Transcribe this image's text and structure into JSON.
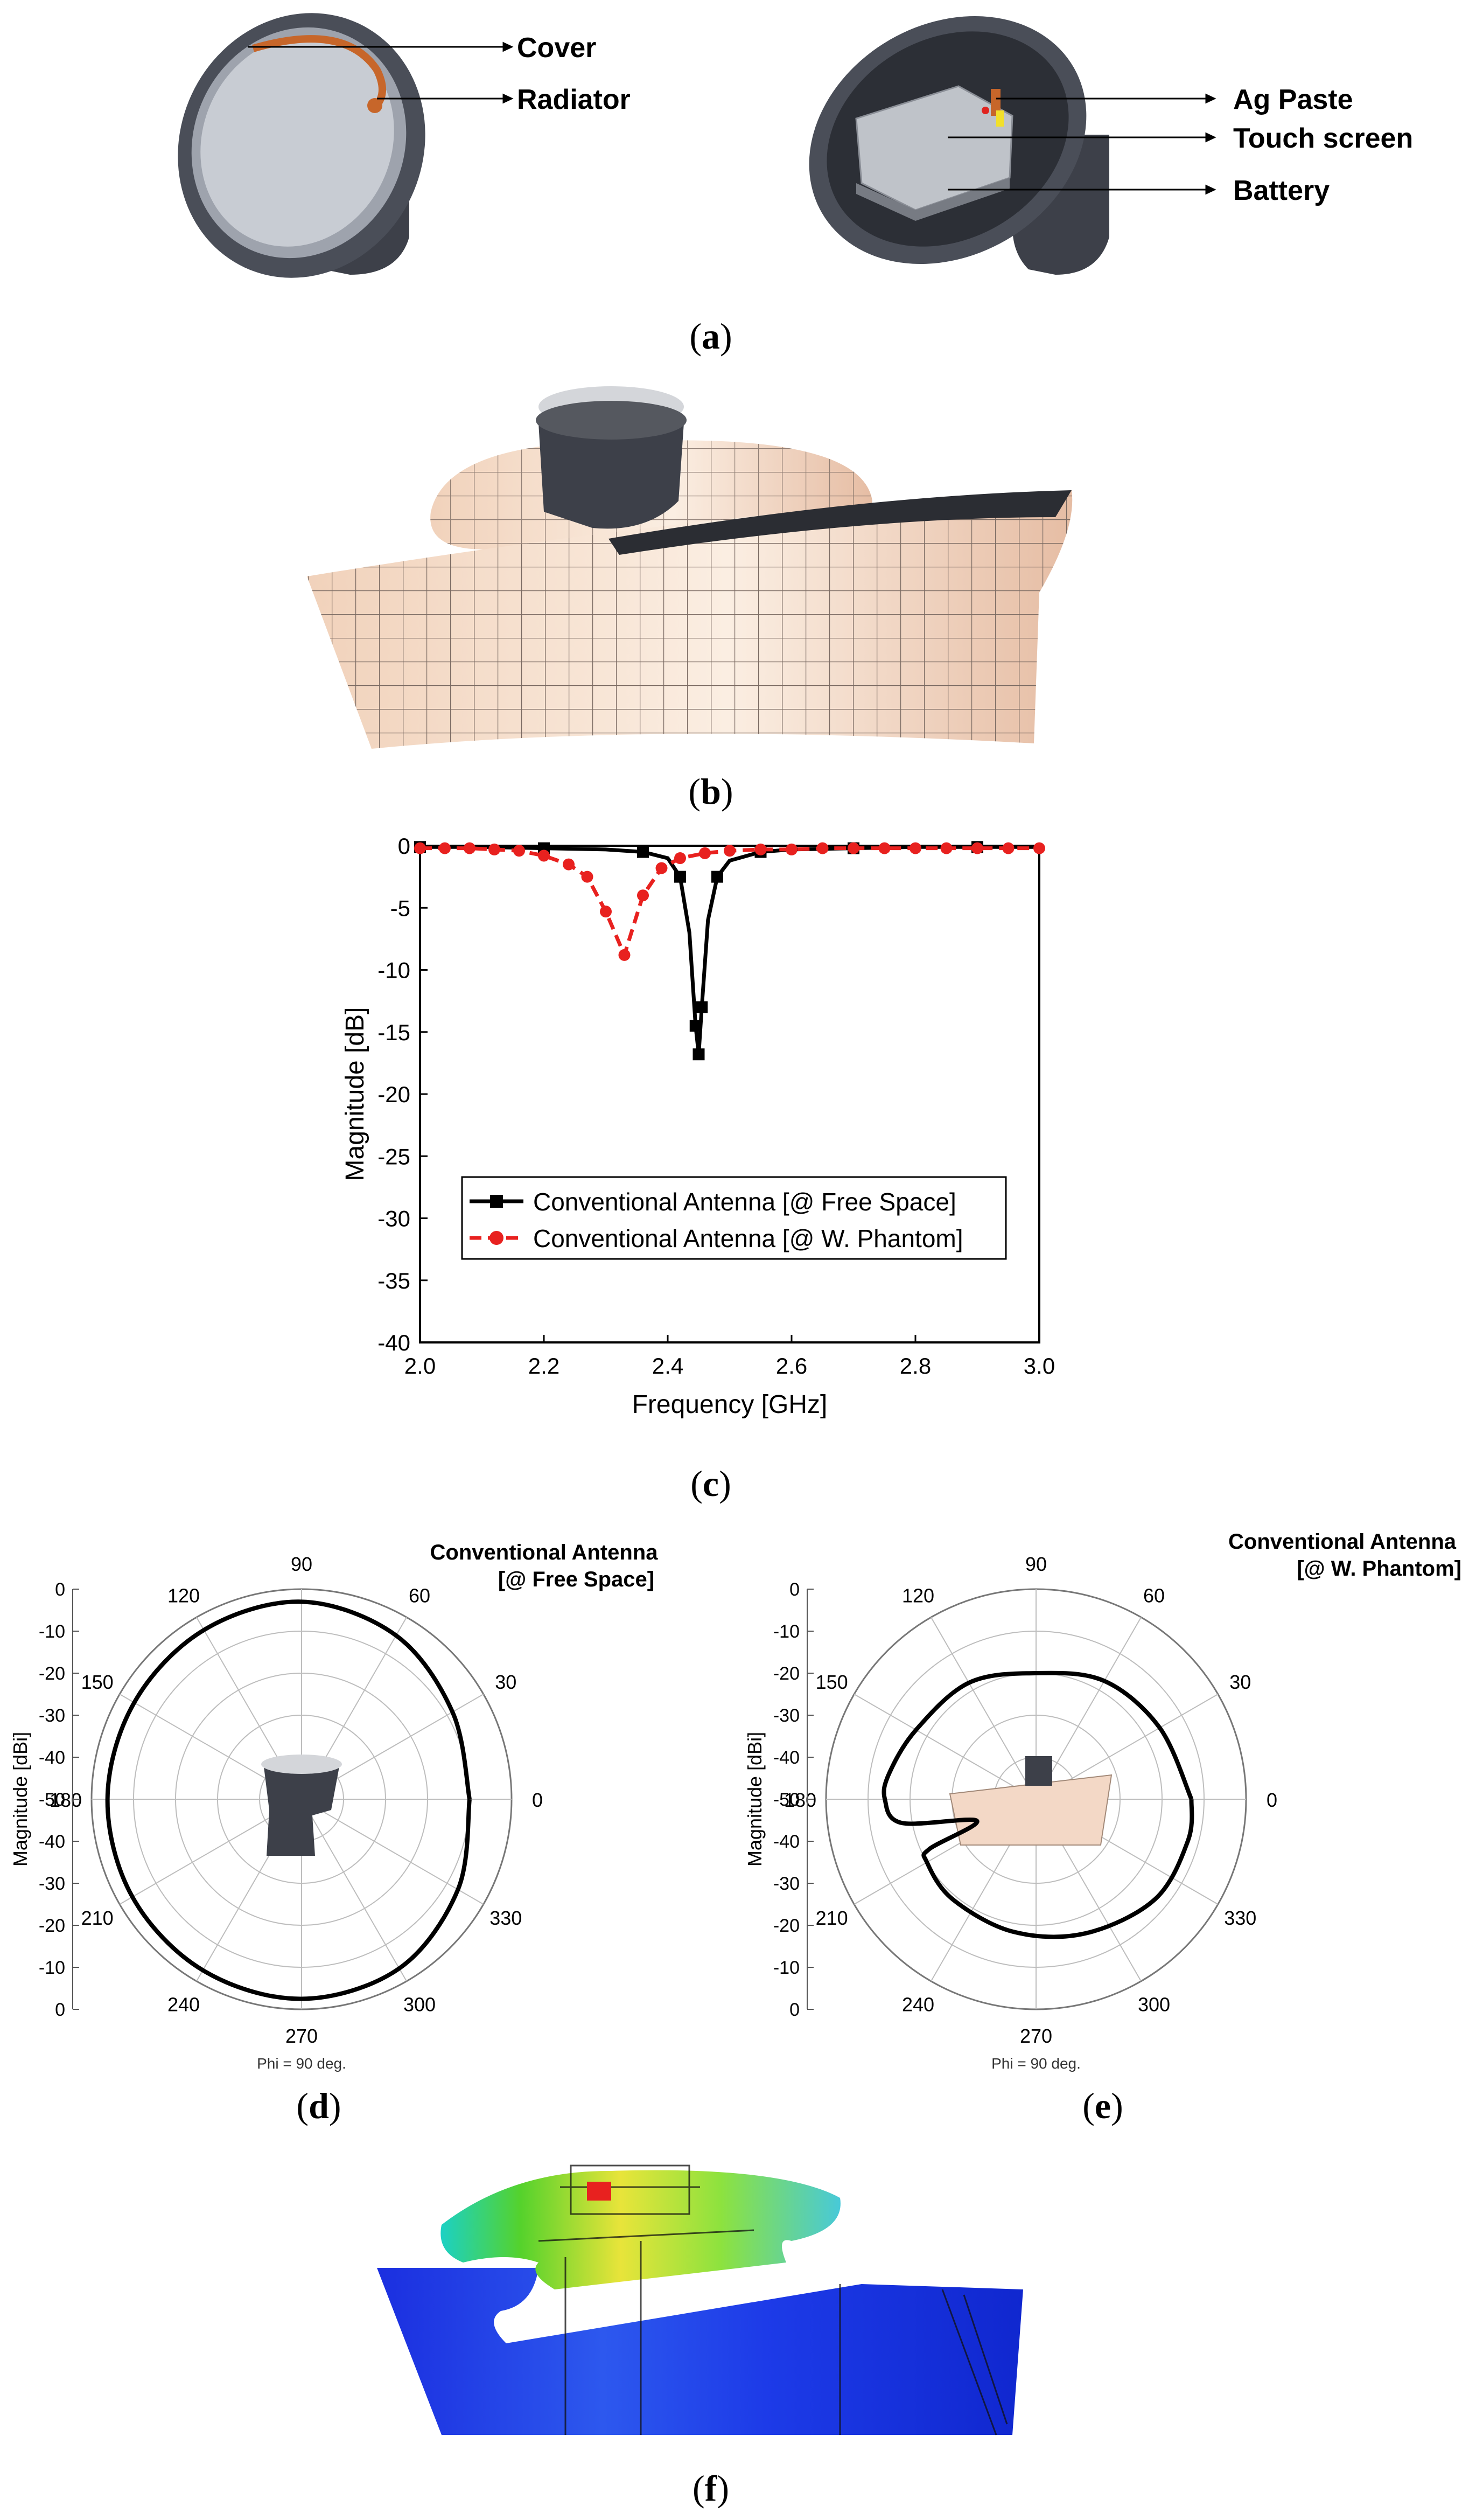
{
  "panel_a": {
    "labels": [
      "Cover",
      "Radiator",
      "Ag Paste",
      "Touch screen",
      "Battery"
    ]
  },
  "captions": {
    "a": "a",
    "b": "b",
    "c": "c",
    "d": "d",
    "e": "e",
    "f": "f"
  },
  "chart_data": [
    {
      "type": "line",
      "xlabel": "Frequency [GHz]",
      "ylabel": "Magnitude [dB]",
      "xlim": [
        2.0,
        3.0
      ],
      "ylim": [
        -40,
        0
      ],
      "xticks": [
        2.0,
        2.2,
        2.4,
        2.6,
        2.8,
        3.0
      ],
      "yticks": [
        0,
        -5,
        -10,
        -15,
        -20,
        -25,
        -30,
        -35,
        -40
      ],
      "legend_position": "lower-center",
      "series": [
        {
          "name": "Conventional Antenna [@ Free Space]",
          "color": "#000000",
          "style": "solid-square",
          "x": [
            2.0,
            2.1,
            2.2,
            2.3,
            2.36,
            2.4,
            2.42,
            2.435,
            2.445,
            2.45,
            2.455,
            2.465,
            2.48,
            2.5,
            2.55,
            2.6,
            2.7,
            2.8,
            2.9,
            3.0
          ],
          "y": [
            -0.1,
            -0.1,
            -0.2,
            -0.3,
            -0.5,
            -1.0,
            -2.5,
            -7.0,
            -14.5,
            -16.8,
            -13.0,
            -6.0,
            -2.5,
            -1.2,
            -0.5,
            -0.3,
            -0.2,
            -0.1,
            -0.1,
            -0.1
          ]
        },
        {
          "name": "Conventional Antenna [@ W. Phantom]",
          "color": "#e8211f",
          "style": "dashed-circle",
          "x": [
            2.0,
            2.04,
            2.08,
            2.12,
            2.16,
            2.2,
            2.24,
            2.27,
            2.3,
            2.33,
            2.36,
            2.39,
            2.42,
            2.46,
            2.5,
            2.55,
            2.6,
            2.65,
            2.7,
            2.75,
            2.8,
            2.85,
            2.9,
            2.95,
            3.0
          ],
          "y": [
            -0.2,
            -0.2,
            -0.2,
            -0.3,
            -0.4,
            -0.8,
            -1.5,
            -2.5,
            -5.3,
            -8.8,
            -4.0,
            -1.8,
            -1.0,
            -0.6,
            -0.4,
            -0.3,
            -0.3,
            -0.2,
            -0.2,
            -0.2,
            -0.2,
            -0.2,
            -0.2,
            -0.2,
            -0.2
          ]
        }
      ]
    },
    {
      "type": "polar",
      "title": "Conventional Antenna [@ Free Space]",
      "ylabel": "Magnitude [dBi]",
      "footer": "Phi = 90 deg.",
      "angle_labels": [
        "0",
        "30",
        "60",
        "90",
        "120",
        "150",
        "180",
        "210",
        "240",
        "270",
        "300",
        "330"
      ],
      "radial_scale_labels": [
        "0",
        "-10",
        "-20",
        "-30",
        "-40",
        "-50",
        "-40",
        "-30",
        "-20",
        "-10",
        "0"
      ],
      "rlim": [
        -50,
        0
      ],
      "theta_deg": [
        0,
        30,
        60,
        90,
        120,
        150,
        180,
        210,
        240,
        270,
        300,
        330,
        360
      ],
      "r_dbi": [
        -10.0,
        -8.5,
        -5.0,
        -3.0,
        -3.5,
        -4.0,
        -3.8,
        -3.5,
        -3.0,
        -2.5,
        -3.5,
        -7.0,
        -10.0
      ]
    },
    {
      "type": "polar",
      "title": "Conventional Antenna [@ W. Phantom]",
      "ylabel": "Magnitude [dBi]",
      "footer": "Phi = 90 deg.",
      "angle_labels": [
        "0",
        "30",
        "60",
        "90",
        "120",
        "150",
        "180",
        "210",
        "240",
        "270",
        "300",
        "330"
      ],
      "radial_scale_labels": [
        "0",
        "-10",
        "-20",
        "-30",
        "-40",
        "-50",
        "-40",
        "-30",
        "-20",
        "-10",
        "0"
      ],
      "rlim": [
        -50,
        0
      ],
      "theta_deg": [
        0,
        30,
        60,
        90,
        120,
        150,
        170,
        180,
        190,
        200,
        205,
        210,
        230,
        260,
        290,
        320,
        345,
        360
      ],
      "r_dbi": [
        -13.0,
        -16.0,
        -17.5,
        -20.0,
        -18.0,
        -17.0,
        -14.5,
        -14.0,
        -17.5,
        -35.0,
        -22.0,
        -20.0,
        -19.0,
        -18.0,
        -16.0,
        -13.0,
        -12.5,
        -13.0
      ]
    }
  ]
}
